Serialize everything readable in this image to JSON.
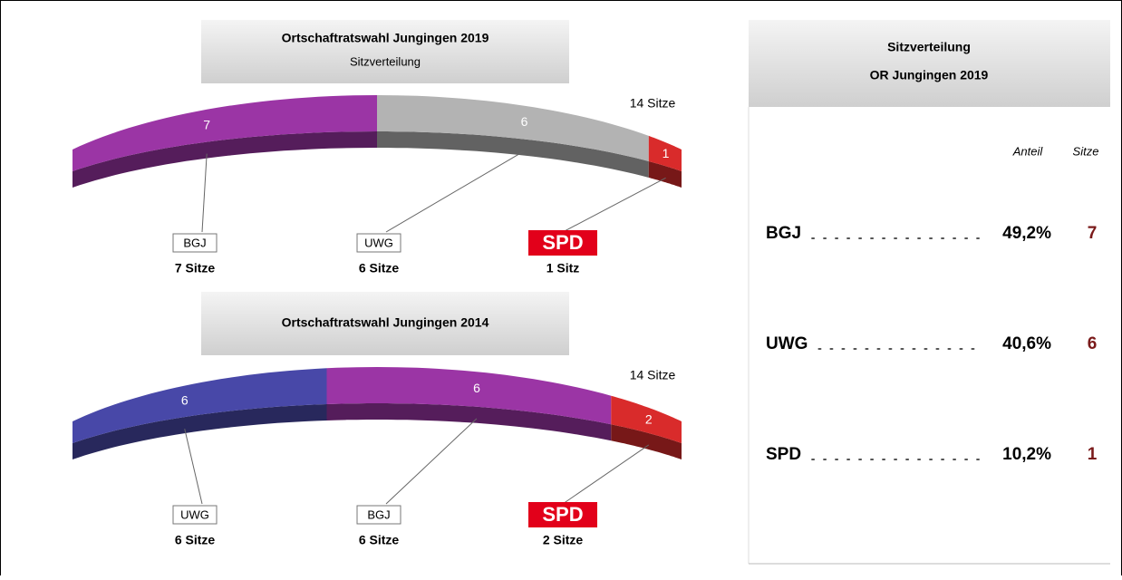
{
  "chart_data": [
    {
      "type": "seats",
      "title": "Ortschaftratswahl Jungingen 2019",
      "subtitle": "Sitzverteilung",
      "total": {
        "value": 14,
        "label": "14 Sitze"
      },
      "categories": [
        "BGJ",
        "UWG",
        "SPD"
      ],
      "values": [
        7,
        6,
        1
      ],
      "value_labels": [
        "7 Sitze",
        "6 Sitze",
        "1 Sitz"
      ],
      "colors": [
        "#9b35a5",
        "#b3b3b3",
        "#d92b2b"
      ],
      "logo": [
        false,
        false,
        true
      ]
    },
    {
      "type": "seats",
      "title": "Ortschaftratswahl Jungingen 2014",
      "total": {
        "value": 14,
        "label": "14 Sitze"
      },
      "categories": [
        "UWG",
        "BGJ",
        "SPD"
      ],
      "values": [
        6,
        6,
        2
      ],
      "value_labels": [
        "6 Sitze",
        "6 Sitze",
        "2 Sitze"
      ],
      "colors": [
        "#4848a8",
        "#9b35a5",
        "#d92b2b"
      ],
      "logo": [
        false,
        false,
        true
      ]
    }
  ],
  "table": {
    "title": "Sitzverteilung",
    "subtitle": "OR Jungingen 2019",
    "columns": [
      "Anteil",
      "Sitze"
    ],
    "rows": [
      [
        "BGJ",
        "49,2%",
        7
      ],
      [
        "UWG",
        "40,6%",
        6
      ],
      [
        "SPD",
        "10,2%",
        1
      ]
    ]
  }
}
